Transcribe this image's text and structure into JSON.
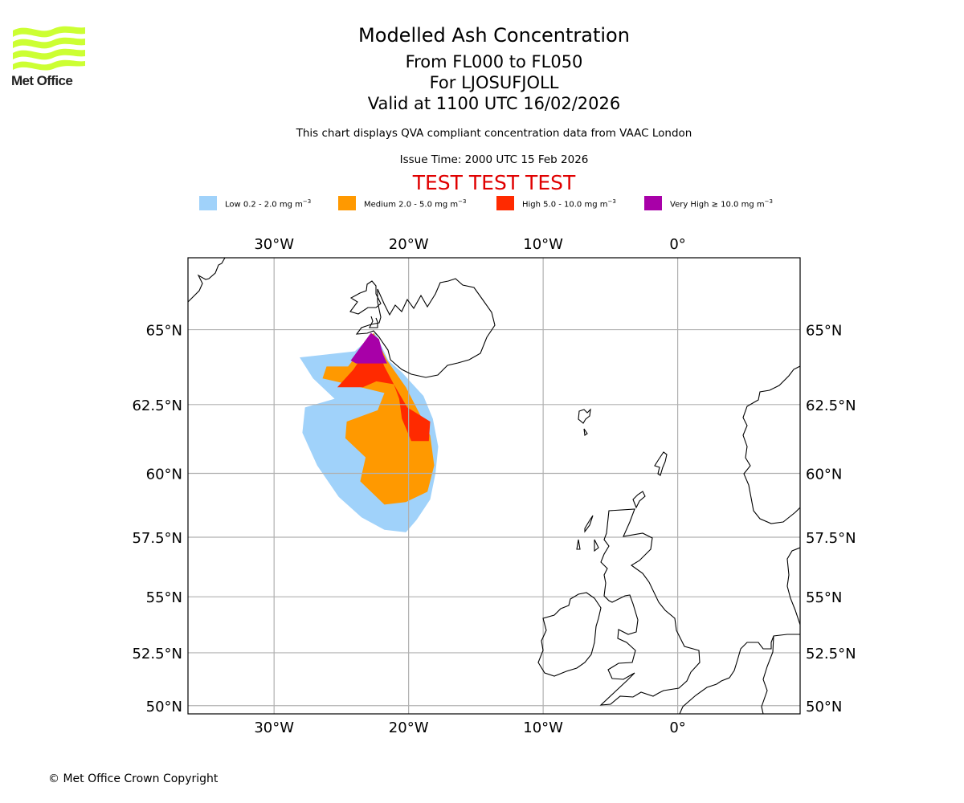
{
  "logo": {
    "text": "Met Office",
    "color": "#ccff33"
  },
  "header": {
    "title": "Modelled Ash Concentration",
    "levels": "From FL000 to FL050",
    "volcano": "For LJOSUFJOLL",
    "valid": "Valid at 1100 UTC 16/02/2026",
    "subtitle": "This chart displays QVA compliant concentration data from VAAC London",
    "issue_time": "Issue Time: 2000 UTC 15 Feb 2026",
    "test_banner": "TEST TEST TEST",
    "test_color": "#e00000"
  },
  "legend": [
    {
      "label": "Low 0.2 - 2.0 mg m",
      "unit_exp": "−3",
      "color": "#a0d2fa"
    },
    {
      "label": "Medium 2.0 - 5.0 mg m",
      "unit_exp": "−3",
      "color": "#ff9900"
    },
    {
      "label": "High 5.0 - 10.0 mg m",
      "unit_exp": "−3",
      "color": "#ff2a00"
    },
    {
      "label": "Very High ≥ 10.0 mg m",
      "unit_exp": "−3",
      "color": "#a800a8"
    }
  ],
  "chart_data": {
    "type": "heatmap",
    "title": "Modelled Ash Concentration",
    "extent": {
      "lon": [
        -36.4,
        9.1
      ],
      "lat": [
        49.6,
        67.2
      ]
    },
    "grid": true,
    "x_ticks": [
      {
        "value": -30,
        "label": "30°W"
      },
      {
        "value": -20,
        "label": "20°W"
      },
      {
        "value": -10,
        "label": "10°W"
      },
      {
        "value": 0,
        "label": "0°"
      }
    ],
    "y_ticks": [
      {
        "value": 65,
        "label": "65°N"
      },
      {
        "value": 62.5,
        "label": "62.5°N"
      },
      {
        "value": 60,
        "label": "60°N"
      },
      {
        "value": 57.5,
        "label": "57.5°N"
      },
      {
        "value": 55,
        "label": "55°N"
      },
      {
        "value": 52.5,
        "label": "52.5°N"
      },
      {
        "value": 50,
        "label": "50°N"
      }
    ],
    "source_location": {
      "name": "LJOSUFJOLL",
      "lon": -22.6,
      "lat": 64.9
    },
    "ash_regions": [
      {
        "level": "Low",
        "polygon": [
          [
            -26,
            64.2
          ],
          [
            -24,
            64.3
          ],
          [
            -22.5,
            64.9
          ],
          [
            -21.5,
            64.0
          ],
          [
            -20.5,
            63.6
          ],
          [
            -18.9,
            62.8
          ],
          [
            -18.2,
            62.0
          ],
          [
            -17.8,
            61.0
          ],
          [
            -18.0,
            60.0
          ],
          [
            -18.4,
            59.0
          ],
          [
            -19.4,
            58.2
          ],
          [
            -20.2,
            57.7
          ],
          [
            -21.8,
            57.8
          ],
          [
            -23.5,
            58.3
          ],
          [
            -25.2,
            59.1
          ],
          [
            -26.8,
            60.3
          ],
          [
            -27.9,
            61.5
          ],
          [
            -27.7,
            62.4
          ],
          [
            -25.5,
            62.7
          ],
          [
            -27.1,
            63.4
          ],
          [
            -28.1,
            64.1
          ]
        ]
      },
      {
        "level": "Medium",
        "polygon": [
          [
            -24.5,
            63.8
          ],
          [
            -22.6,
            64.9
          ],
          [
            -21.6,
            64.0
          ],
          [
            -20.2,
            63.1
          ],
          [
            -19.1,
            62.1
          ],
          [
            -18.4,
            61.4
          ],
          [
            -18.1,
            60.3
          ],
          [
            -18.6,
            59.3
          ],
          [
            -20.2,
            58.9
          ],
          [
            -21.8,
            58.8
          ],
          [
            -23.6,
            59.7
          ],
          [
            -23.2,
            60.6
          ],
          [
            -24.7,
            61.3
          ],
          [
            -24.6,
            61.9
          ],
          [
            -22.3,
            62.3
          ],
          [
            -21.8,
            62.9
          ],
          [
            -24.5,
            63.2
          ],
          [
            -26.4,
            63.4
          ],
          [
            -26.1,
            63.8
          ]
        ]
      },
      {
        "level": "High",
        "polygon": [
          [
            -24.1,
            63.7
          ],
          [
            -22.6,
            64.7
          ],
          [
            -21.8,
            63.8
          ],
          [
            -21.1,
            63.2
          ],
          [
            -20.1,
            62.4
          ],
          [
            -18.4,
            61.9
          ],
          [
            -18.5,
            61.2
          ],
          [
            -19.8,
            61.2
          ],
          [
            -20.5,
            62.0
          ],
          [
            -20.7,
            62.7
          ],
          [
            -21.1,
            63.2
          ],
          [
            -22.4,
            63.3
          ],
          [
            -23.4,
            63.1
          ],
          [
            -25.3,
            63.1
          ]
        ]
      },
      {
        "level": "Very High",
        "polygon": [
          [
            -24.3,
            64.0
          ],
          [
            -22.8,
            64.9
          ],
          [
            -22.2,
            64.7
          ],
          [
            -21.9,
            64.2
          ],
          [
            -21.6,
            63.9
          ],
          [
            -22.9,
            63.9
          ],
          [
            -23.9,
            63.9
          ]
        ]
      }
    ]
  },
  "footer": {
    "copyright": "© Met Office Crown Copyright"
  }
}
